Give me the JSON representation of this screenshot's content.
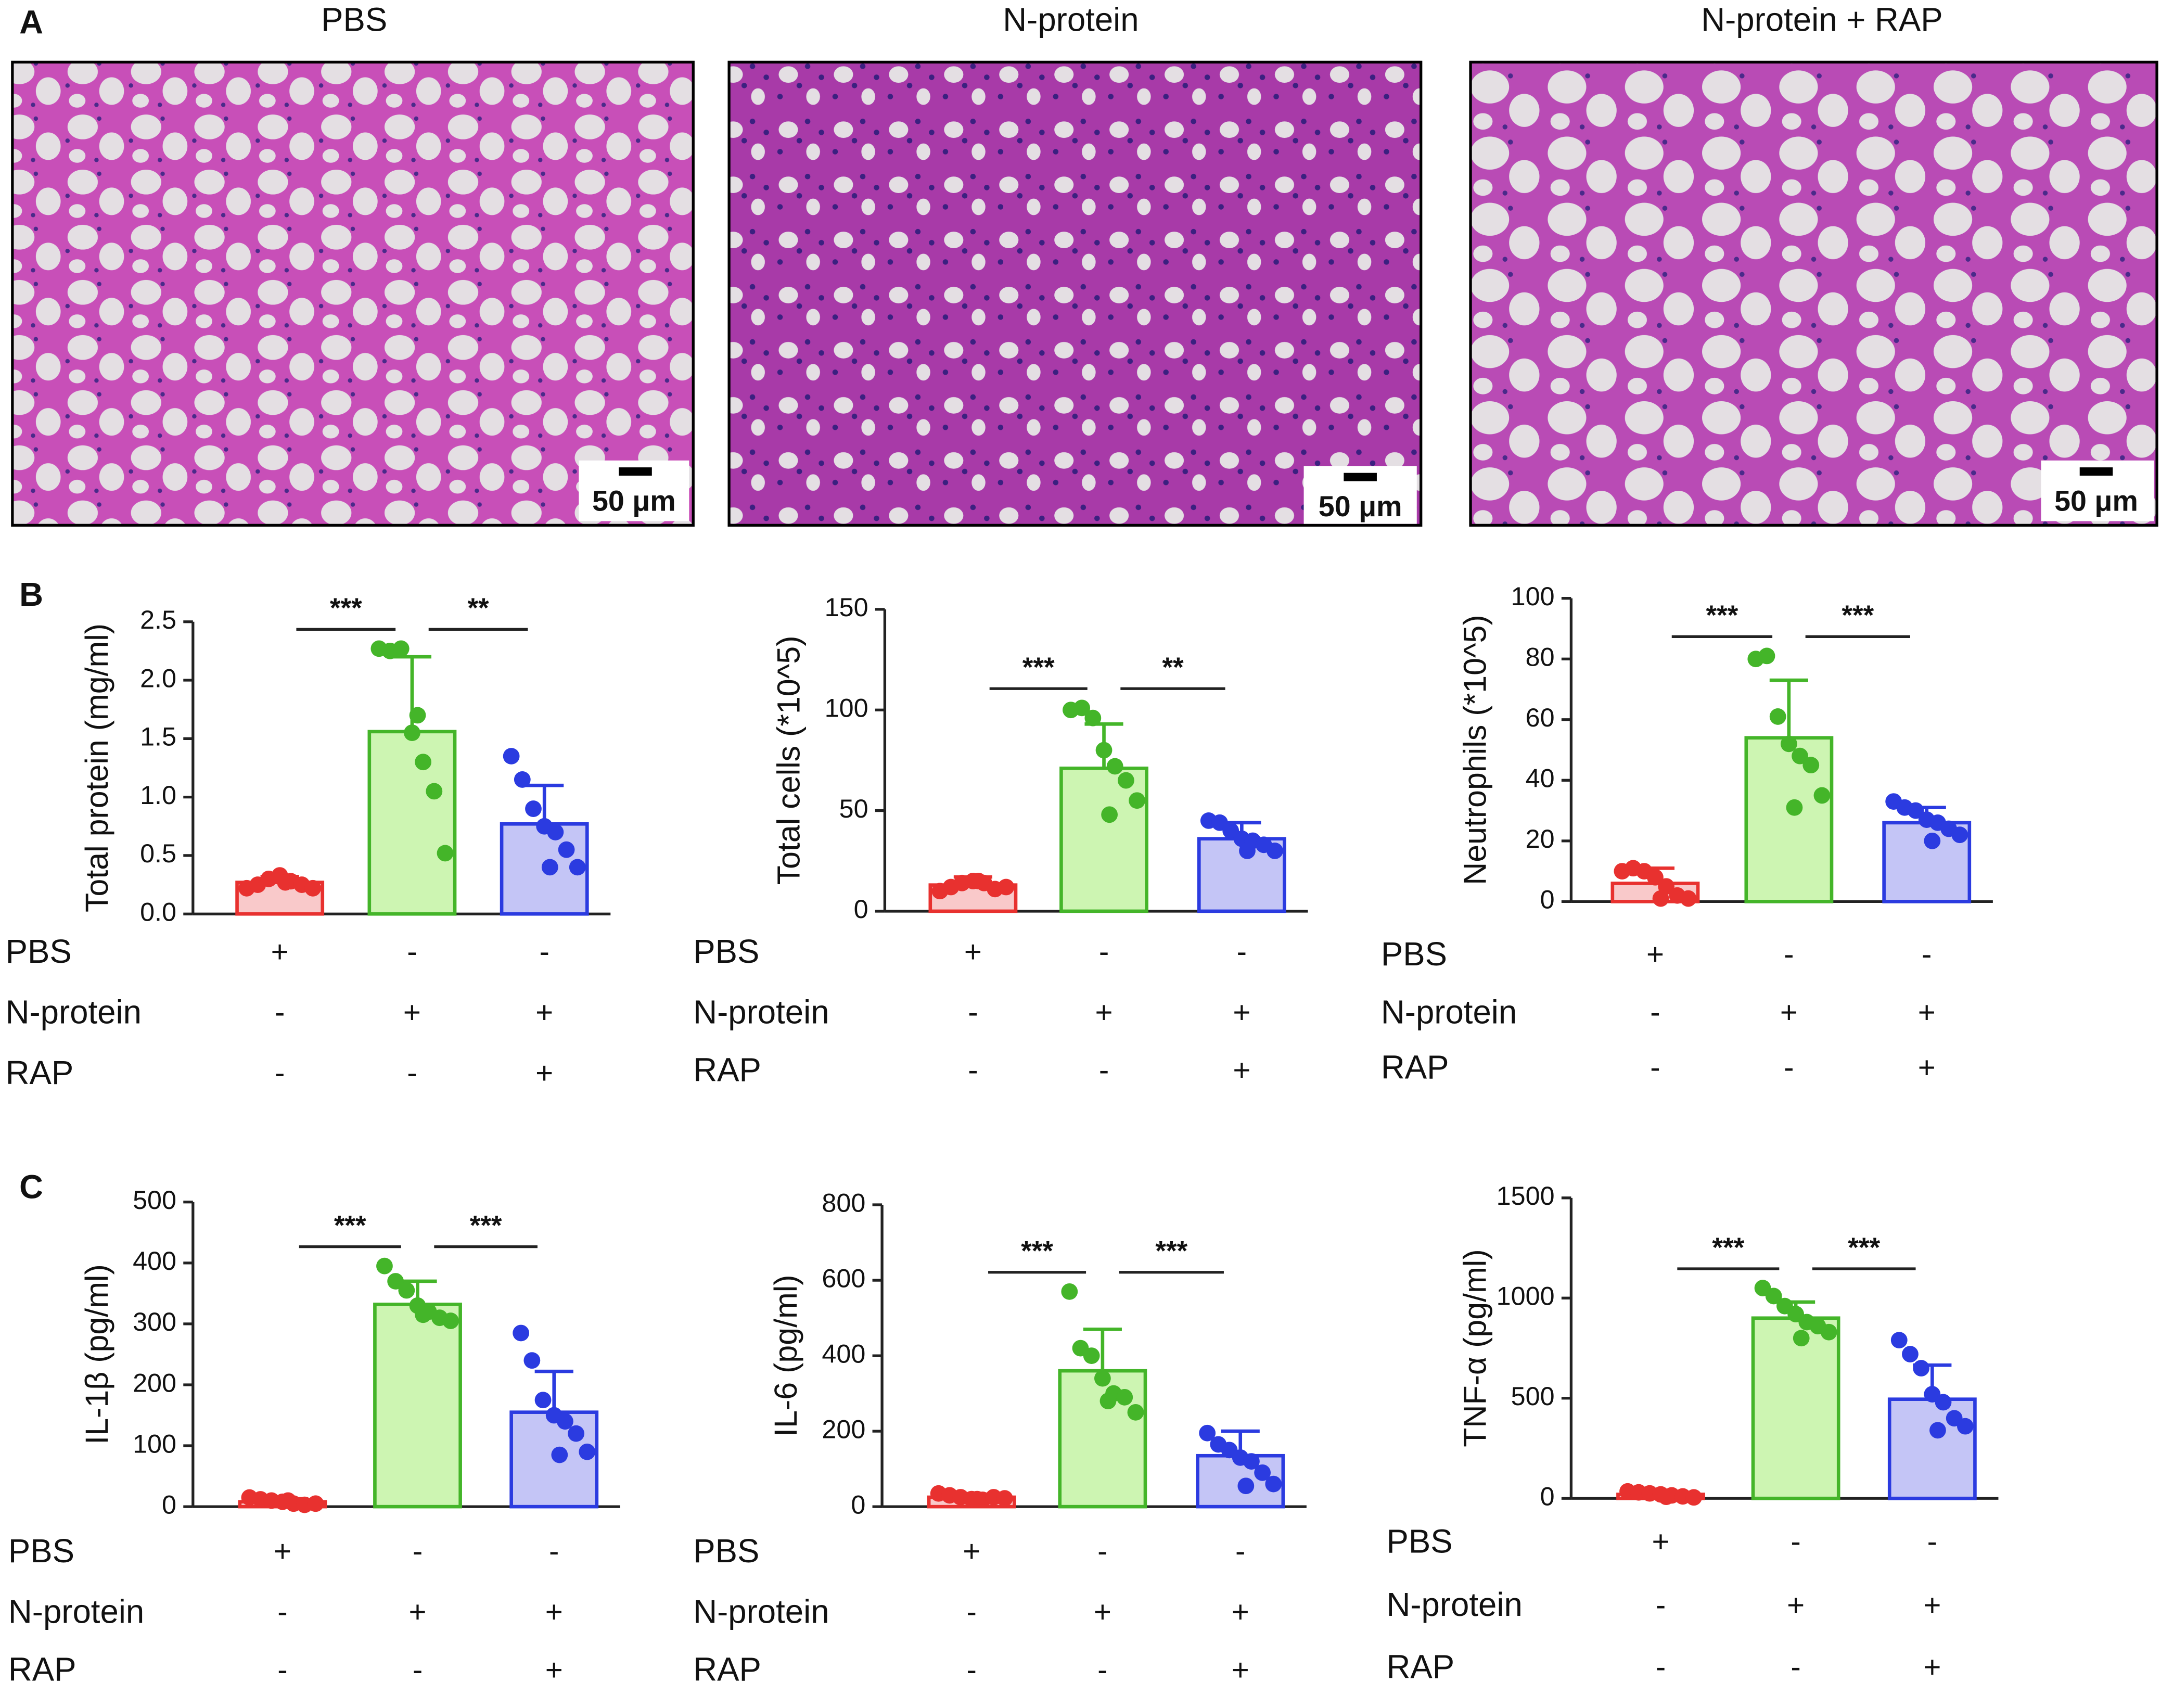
{
  "panel_labels": [
    "A",
    "B",
    "C"
  ],
  "histology": {
    "titles": [
      "PBS",
      "N-protein",
      "N-protein + RAP"
    ],
    "scale_bar": "50 μm"
  },
  "chart_data": [
    {
      "type": "bar",
      "ylabel": "Total protein (mg/ml)",
      "ylim": [
        0,
        2.5
      ],
      "yticks": [
        {
          "value": 0,
          "label": "0.0"
        },
        0.5,
        {
          "value": 1,
          "label": "1.0"
        },
        1.5,
        {
          "value": 2,
          "label": "2.0"
        },
        2.5
      ],
      "values": [
        0.27,
        1.56,
        0.77
      ],
      "errors": [
        0.05,
        0.64,
        0.33
      ],
      "points": [
        [
          0.22,
          0.25,
          0.3,
          0.33,
          0.28,
          0.25,
          0.22,
          0.27
        ],
        [
          2.27,
          2.25,
          2.27,
          1.55,
          1.3,
          1.05,
          0.52,
          1.7
        ],
        [
          1.35,
          1.15,
          0.9,
          0.75,
          0.7,
          0.55,
          0.4,
          0.4
        ]
      ],
      "colors": [
        "#e8312f",
        "#44b529",
        "#2b3be0"
      ],
      "fill_colors": [
        "#f9c9ca",
        "#cdf5b2",
        "#c4c5f6"
      ],
      "significance": [
        "***",
        "**"
      ],
      "treatments": [
        {
          "name": "PBS",
          "signs": [
            "+",
            "-",
            "-"
          ]
        },
        {
          "name": "N-protein",
          "signs": [
            "-",
            "+",
            "+"
          ]
        },
        {
          "name": "RAP",
          "signs": [
            "-",
            "-",
            "+"
          ]
        }
      ]
    },
    {
      "type": "bar",
      "ylabel": "Total cells (*10^5)",
      "ylim": [
        0,
        150
      ],
      "yticks": [
        0,
        50,
        100,
        150
      ],
      "values": [
        13,
        71,
        36
      ],
      "errors": [
        4,
        22,
        8
      ],
      "points": [
        [
          10,
          12,
          14,
          15,
          14,
          11,
          12,
          15
        ],
        [
          100,
          101,
          96,
          80,
          72,
          65,
          55,
          48
        ],
        [
          45,
          44,
          40,
          36,
          35,
          33,
          30,
          30
        ]
      ],
      "colors": [
        "#e8312f",
        "#44b529",
        "#2b3be0"
      ],
      "fill_colors": [
        "#f9c9ca",
        "#cdf5b2",
        "#c4c5f6"
      ],
      "significance": [
        "***",
        "**"
      ],
      "treatments": [
        {
          "name": "PBS",
          "signs": [
            "+",
            "-",
            "-"
          ]
        },
        {
          "name": "N-protein",
          "signs": [
            "-",
            "+",
            "+"
          ]
        },
        {
          "name": "RAP",
          "signs": [
            "-",
            "-",
            "+"
          ]
        }
      ]
    },
    {
      "type": "bar",
      "ylabel": "Neutrophils (*10^5)",
      "ylim": [
        0,
        100
      ],
      "yticks": [
        0,
        20,
        40,
        60,
        80,
        100
      ],
      "values": [
        6,
        54,
        26
      ],
      "errors": [
        5,
        19,
        5
      ],
      "points": [
        [
          10,
          11,
          10,
          8,
          5,
          2,
          1,
          1
        ],
        [
          80,
          81,
          61,
          52,
          48,
          45,
          35,
          31
        ],
        [
          33,
          31,
          30,
          27,
          26,
          24,
          22,
          20
        ]
      ],
      "colors": [
        "#e8312f",
        "#44b529",
        "#2b3be0"
      ],
      "fill_colors": [
        "#f9c9ca",
        "#cdf5b2",
        "#c4c5f6"
      ],
      "significance": [
        "***",
        "***"
      ],
      "treatments": [
        {
          "name": "PBS",
          "signs": [
            "+",
            "-",
            "-"
          ]
        },
        {
          "name": "N-protein",
          "signs": [
            "-",
            "+",
            "+"
          ]
        },
        {
          "name": "RAP",
          "signs": [
            "-",
            "-",
            "+"
          ]
        }
      ]
    },
    {
      "type": "bar",
      "ylabel": "IL-1β (pg/ml)",
      "ylim": [
        0,
        500
      ],
      "yticks": [
        0,
        100,
        200,
        300,
        400,
        500
      ],
      "values": [
        8,
        332,
        155
      ],
      "errors": [
        5,
        38,
        67
      ],
      "points": [
        [
          15,
          12,
          10,
          8,
          5,
          3,
          5,
          10
        ],
        [
          395,
          370,
          355,
          330,
          320,
          310,
          305,
          315
        ],
        [
          285,
          240,
          175,
          150,
          140,
          120,
          90,
          85
        ]
      ],
      "colors": [
        "#e8312f",
        "#44b529",
        "#2b3be0"
      ],
      "fill_colors": [
        "#f9c9ca",
        "#cdf5b2",
        "#c4c5f6"
      ],
      "significance": [
        "***",
        "***"
      ],
      "treatments": [
        {
          "name": "PBS",
          "signs": [
            "+",
            "-",
            "-"
          ]
        },
        {
          "name": "N-protein",
          "signs": [
            "-",
            "+",
            "+"
          ]
        },
        {
          "name": "RAP",
          "signs": [
            "-",
            "-",
            "+"
          ]
        }
      ]
    },
    {
      "type": "bar",
      "ylabel": "IL-6 (pg/ml)",
      "ylim": [
        0,
        800
      ],
      "yticks": [
        0,
        200,
        400,
        600,
        800
      ],
      "values": [
        25,
        360,
        135
      ],
      "errors": [
        8,
        110,
        65
      ],
      "points": [
        [
          35,
          30,
          25,
          20,
          18,
          25,
          22,
          20
        ],
        [
          570,
          420,
          400,
          340,
          300,
          290,
          250,
          280
        ],
        [
          195,
          165,
          150,
          130,
          120,
          90,
          60,
          55
        ]
      ],
      "colors": [
        "#e8312f",
        "#44b529",
        "#2b3be0"
      ],
      "fill_colors": [
        "#f9c9ca",
        "#cdf5b2",
        "#c4c5f6"
      ],
      "significance": [
        "***",
        "***"
      ],
      "treatments": [
        {
          "name": "PBS",
          "signs": [
            "+",
            "-",
            "-"
          ]
        },
        {
          "name": "N-protein",
          "signs": [
            "-",
            "+",
            "+"
          ]
        },
        {
          "name": "RAP",
          "signs": [
            "-",
            "-",
            "+"
          ]
        }
      ]
    },
    {
      "type": "bar",
      "ylabel": "TNF-α (pg/ml)",
      "ylim": [
        0,
        1500
      ],
      "yticks": [
        0,
        500,
        1000,
        1500
      ],
      "values": [
        20,
        900,
        495
      ],
      "errors": [
        10,
        80,
        170
      ],
      "points": [
        [
          35,
          30,
          25,
          20,
          15,
          10,
          5,
          8
        ],
        [
          1050,
          1010,
          960,
          920,
          880,
          860,
          830,
          800
        ],
        [
          790,
          720,
          650,
          520,
          480,
          400,
          360,
          340
        ]
      ],
      "colors": [
        "#e8312f",
        "#44b529",
        "#2b3be0"
      ],
      "fill_colors": [
        "#f9c9ca",
        "#cdf5b2",
        "#c4c5f6"
      ],
      "significance": [
        "***",
        "***"
      ],
      "treatments": [
        {
          "name": "PBS",
          "signs": [
            "+",
            "-",
            "-"
          ]
        },
        {
          "name": "N-protein",
          "signs": [
            "-",
            "+",
            "+"
          ]
        },
        {
          "name": "RAP",
          "signs": [
            "-",
            "-",
            "+"
          ]
        }
      ]
    }
  ]
}
